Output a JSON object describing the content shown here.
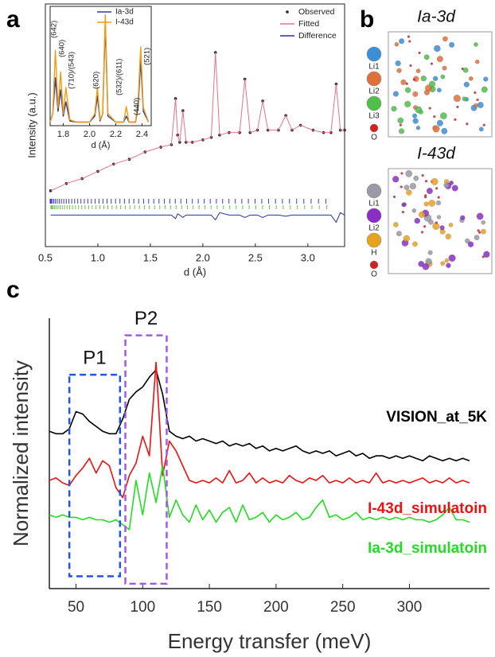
{
  "panel_labels": [
    "a",
    "b",
    "c"
  ],
  "structures": [
    {
      "title": "Ia-3d",
      "legend": [
        {
          "label": "Li1",
          "color": "#3a8fd6"
        },
        {
          "label": "Li2",
          "color": "#e0703a"
        },
        {
          "label": "Li3",
          "color": "#4fbf4a"
        },
        {
          "label": "O",
          "color": "#d42020"
        }
      ]
    },
    {
      "title": "I-43d",
      "legend": [
        {
          "label": "Li1",
          "color": "#9a9aa6"
        },
        {
          "label": "Li2",
          "color": "#8a2fc4"
        },
        {
          "label": "H",
          "color": "#e7a21e"
        },
        {
          "label": "O",
          "color": "#d42020"
        }
      ]
    }
  ],
  "chart_data": [
    {
      "type": "line",
      "x_label": "d (Å)",
      "y_label": "Intensity (a.u.)",
      "legend": "upper right",
      "x": [
        0.55,
        0.7,
        0.85,
        1.0,
        1.15,
        1.3,
        1.45,
        1.6,
        1.7,
        1.74,
        1.76,
        1.78,
        1.81,
        1.84,
        1.9,
        2.0,
        2.08,
        2.12,
        2.16,
        2.25,
        2.35,
        2.4,
        2.45,
        2.52,
        2.57,
        2.62,
        2.72,
        2.79,
        2.85,
        2.93,
        3.05,
        3.15,
        3.22,
        3.27,
        3.31,
        3.35
      ],
      "series": [
        {
          "name": "Observed",
          "color": "#222222",
          "marker": "dot",
          "values": [
            2.3,
            2.6,
            2.8,
            3.1,
            3.4,
            3.6,
            3.9,
            4.1,
            4.2,
            6.1,
            4.6,
            4.3,
            5.6,
            4.3,
            4.3,
            4.4,
            4.5,
            8.0,
            4.6,
            4.7,
            4.7,
            6.9,
            4.7,
            4.8,
            6.0,
            4.8,
            4.8,
            5.4,
            4.8,
            5.0,
            4.8,
            4.7,
            4.7,
            6.7,
            4.8,
            4.8
          ]
        },
        {
          "name": "Fitted",
          "color": "#e8728a",
          "values": [
            2.3,
            2.6,
            2.8,
            3.1,
            3.4,
            3.6,
            3.9,
            4.1,
            4.2,
            6.1,
            4.6,
            4.3,
            5.6,
            4.3,
            4.3,
            4.4,
            4.5,
            8.0,
            4.6,
            4.7,
            4.7,
            6.9,
            4.7,
            4.8,
            6.0,
            4.8,
            4.8,
            5.4,
            4.8,
            5.0,
            4.8,
            4.7,
            4.7,
            6.7,
            4.8,
            4.8
          ]
        },
        {
          "name": "Difference",
          "color": "#2233aa",
          "values": [
            1.3,
            1.3,
            1.3,
            1.3,
            1.3,
            1.3,
            1.3,
            1.3,
            1.3,
            1.15,
            1.35,
            1.3,
            1.2,
            1.3,
            1.3,
            1.3,
            1.3,
            1.1,
            1.4,
            1.3,
            1.3,
            1.2,
            1.3,
            1.3,
            1.2,
            1.3,
            1.3,
            1.25,
            1.3,
            1.3,
            1.3,
            1.3,
            1.3,
            1.0,
            1.4,
            1.3
          ]
        }
      ],
      "xlim": [
        0.5,
        3.35
      ],
      "ylim": [
        0,
        10
      ],
      "xticks": [
        0.5,
        {
          "value": 1,
          "label": "1.0"
        },
        1.5,
        {
          "value": 2,
          "label": "2.0"
        },
        2.5,
        {
          "value": 3,
          "label": "3.0"
        }
      ]
    },
    {
      "type": "line",
      "x_label": "d (Å)",
      "legend": "upper right",
      "x": [
        1.7,
        1.72,
        1.74,
        1.76,
        1.78,
        1.8,
        1.82,
        1.85,
        1.9,
        2.0,
        2.04,
        2.06,
        2.08,
        2.1,
        2.12,
        2.14,
        2.2,
        2.26,
        2.28,
        2.3,
        2.35,
        2.37,
        2.39,
        2.41,
        2.45
      ],
      "series": [
        {
          "name": "Ia-3d",
          "color": "#2c3e91",
          "values": [
            0.3,
            1,
            4.0,
            1.2,
            3.0,
            0.8,
            2.0,
            0.4,
            0.3,
            0.3,
            0.8,
            2.5,
            0.4,
            1,
            8.5,
            0.8,
            0.3,
            0.3,
            0.8,
            0.3,
            0.3,
            1.5,
            5.5,
            1.2,
            0.3
          ]
        },
        {
          "name": "I-43d",
          "color": "#f39c12",
          "values": [
            0.3,
            1,
            6.3,
            1.5,
            4.5,
            1,
            3.2,
            0.5,
            0.3,
            0.3,
            1,
            3.2,
            0.5,
            1,
            9.3,
            1,
            0.3,
            0.3,
            1.6,
            0.3,
            0.3,
            2,
            6.6,
            1.5,
            0.3
          ]
        }
      ],
      "xlim": [
        1.7,
        2.47
      ],
      "ylim": [
        0,
        10
      ],
      "xticks": [
        1.8,
        {
          "value": 2,
          "label": "2.0"
        },
        2.2,
        2.4
      ],
      "annotations": [
        "(642)",
        "(640)",
        "(710)/(543)",
        "(620)",
        "(532)/(611)",
        "(440)",
        "(521)"
      ]
    },
    {
      "type": "line",
      "x_label": "Energy transfer (meV)",
      "y_label": "Normalized intensity",
      "x": [
        30,
        35,
        40,
        45,
        50,
        55,
        60,
        65,
        70,
        75,
        80,
        85,
        90,
        95,
        100,
        105,
        110,
        115,
        120,
        125,
        130,
        135,
        140,
        145,
        150,
        155,
        160,
        165,
        170,
        175,
        180,
        185,
        190,
        195,
        200,
        205,
        210,
        215,
        220,
        225,
        230,
        235,
        240,
        245,
        250,
        255,
        260,
        265,
        270,
        275,
        280,
        285,
        290,
        295,
        300,
        305,
        310,
        315,
        320,
        325,
        330,
        335,
        340,
        345
      ],
      "series": [
        {
          "name": "VISION_at_5K",
          "color": "#000000",
          "values": [
            6.4,
            6.3,
            6.3,
            6.5,
            7.2,
            7.1,
            6.8,
            6.6,
            6.4,
            6.3,
            6.3,
            6.9,
            7.7,
            8.0,
            8.2,
            8.6,
            8.9,
            7.9,
            6.4,
            6.2,
            6.1,
            6.2,
            6.0,
            6.1,
            6.0,
            5.9,
            6.0,
            5.8,
            5.9,
            5.8,
            5.9,
            5.7,
            5.8,
            5.6,
            5.7,
            5.6,
            5.7,
            5.8,
            5.6,
            5.5,
            5.6,
            5.5,
            5.6,
            5.4,
            5.5,
            5.6,
            5.4,
            5.5,
            5.3,
            5.4,
            5.4,
            5.3,
            5.4,
            5.3,
            5.4,
            5.3,
            5.2,
            5.4,
            5.3,
            5.2,
            5.3,
            5.2,
            5.3,
            5.2
          ]
        },
        {
          "name": "I-43d_simulatoin",
          "color": "#ee1111",
          "values": [
            4.4,
            4.5,
            4.3,
            4.2,
            4.6,
            4.9,
            5.3,
            4.7,
            5.2,
            5.0,
            4.1,
            3.7,
            4.6,
            5.1,
            6.2,
            5.4,
            9.2,
            4.6,
            6.0,
            5.6,
            5.0,
            4.4,
            4.3,
            4.4,
            4.3,
            4.5,
            4.3,
            4.8,
            4.3,
            4.4,
            4.7,
            4.3,
            4.5,
            4.3,
            4.4,
            4.3,
            4.6,
            4.4,
            4.3,
            4.5,
            4.4,
            4.6,
            4.3,
            4.4,
            4.3,
            4.5,
            4.3,
            4.4,
            4.3,
            4.7,
            4.3,
            4.4,
            4.3,
            4.4,
            4.3,
            4.4,
            4.5,
            4.3,
            4.4,
            4.3,
            4.5,
            4.3,
            4.4,
            4.3
          ]
        },
        {
          "name": "Ia-3d_simulatoin",
          "color": "#22dd22",
          "values": [
            3.0,
            2.9,
            3.0,
            2.9,
            2.9,
            2.8,
            2.9,
            2.8,
            2.8,
            2.7,
            2.8,
            2.6,
            2.4,
            4.4,
            3.0,
            4.7,
            3.5,
            5.0,
            2.9,
            3.6,
            3.0,
            2.7,
            3.4,
            2.8,
            3.2,
            2.7,
            3.1,
            3.3,
            2.7,
            3.4,
            2.8,
            2.9,
            3.1,
            2.7,
            3.0,
            2.8,
            2.9,
            3.1,
            2.8,
            2.9,
            3.3,
            3.6,
            2.9,
            3.0,
            2.8,
            2.9,
            3.1,
            2.8,
            2.9,
            2.8,
            2.9,
            2.8,
            2.9,
            2.8,
            2.9,
            2.8,
            2.8,
            2.7,
            2.8,
            3.0,
            3.3,
            2.8,
            2.8,
            2.7
          ]
        }
      ],
      "xlim": [
        30,
        360
      ],
      "ylim": [
        0,
        11
      ],
      "xticks": [
        50,
        100,
        150,
        200,
        250,
        300
      ],
      "regions": [
        {
          "label": "P1",
          "x": [
            45,
            83
          ],
          "y": [
            0.5,
            8.7
          ],
          "color": "#2255dd"
        },
        {
          "label": "P2",
          "x": [
            87,
            118
          ],
          "y": [
            0.2,
            10.3
          ],
          "color": "#a259e6"
        }
      ]
    }
  ]
}
